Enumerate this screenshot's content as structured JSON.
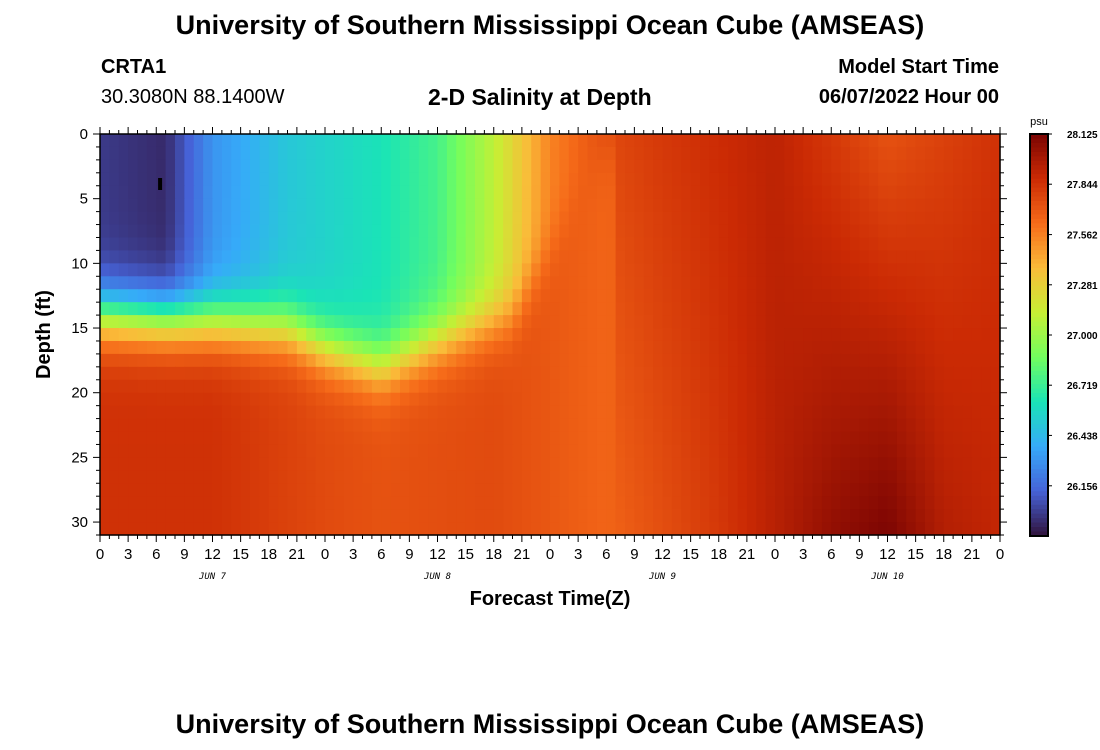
{
  "header": {
    "title": "University of Southern Mississippi Ocean Cube (AMSEAS)",
    "station_id": "CRTA1",
    "coordinates": "30.3080N  88.1400W",
    "plot_title": "2-D Salinity at Depth",
    "model_start_label": "Model Start Time",
    "model_start_value": "06/07/2022 Hour 00"
  },
  "footer": {
    "title": "University of Southern Mississippi Ocean Cube (AMSEAS)"
  },
  "chart_data": {
    "type": "heatmap",
    "title": "2-D Salinity at Depth",
    "xlabel": "Forecast Time(Z)",
    "ylabel": "Depth (ft)",
    "x_tick_labels": [
      "0",
      "3",
      "6",
      "9",
      "12",
      "15",
      "18",
      "21",
      "0",
      "3",
      "6",
      "9",
      "12",
      "15",
      "18",
      "21",
      "0",
      "3",
      "6",
      "9",
      "12",
      "15",
      "18",
      "21",
      "0",
      "3",
      "6",
      "9",
      "12",
      "15",
      "18",
      "21",
      "0"
    ],
    "x_range_hours": [
      0,
      96
    ],
    "day_labels": [
      {
        "label": "JUN 7",
        "hour": 12
      },
      {
        "label": "JUN 8",
        "hour": 36
      },
      {
        "label": "JUN 9",
        "hour": 60
      },
      {
        "label": "JUN 10",
        "hour": 84
      }
    ],
    "y_ticks": [
      0,
      5,
      10,
      15,
      20,
      25,
      30
    ],
    "y_tick_labels": [
      "0",
      "5",
      "10",
      "15",
      "20",
      "25",
      "30"
    ],
    "ylim": [
      0,
      31
    ],
    "y_inverted": true,
    "colorbar": {
      "unit": "psu",
      "min": 25.875,
      "max": 28.125,
      "labels": [
        "28.125",
        "27.844",
        "27.562",
        "27.281",
        "27.000",
        "26.719",
        "26.438",
        "26.156"
      ],
      "colors": [
        "#30123b",
        "#4662d7",
        "#36aaf9",
        "#1ae4b6",
        "#72fe5e",
        "#c7ef34",
        "#fabb39",
        "#f66b19",
        "#cb2a04",
        "#7a0403"
      ]
    },
    "surface_salinity_keypoints": [
      {
        "hour": 0,
        "value": 26.0
      },
      {
        "hour": 7,
        "value": 25.95
      },
      {
        "hour": 12,
        "value": 26.3
      },
      {
        "hour": 20,
        "value": 26.5
      },
      {
        "hour": 30,
        "value": 26.62
      },
      {
        "hour": 36,
        "value": 26.75
      },
      {
        "hour": 42,
        "value": 27.1
      },
      {
        "hour": 48,
        "value": 27.55
      },
      {
        "hour": 54,
        "value": 27.75
      },
      {
        "hour": 60,
        "value": 27.82
      },
      {
        "hour": 72,
        "value": 27.92
      },
      {
        "hour": 84,
        "value": 27.72
      },
      {
        "hour": 96,
        "value": 27.85
      }
    ],
    "bottom_salinity_keypoints": [
      {
        "hour": 0,
        "value": 27.85
      },
      {
        "hour": 12,
        "value": 27.85
      },
      {
        "hour": 24,
        "value": 27.75
      },
      {
        "hour": 30,
        "value": 27.72
      },
      {
        "hour": 42,
        "value": 27.75
      },
      {
        "hour": 54,
        "value": 27.65
      },
      {
        "hour": 66,
        "value": 27.82
      },
      {
        "hour": 78,
        "value": 28.05
      },
      {
        "hour": 84,
        "value": 28.12
      },
      {
        "hour": 90,
        "value": 27.95
      },
      {
        "hour": 96,
        "value": 27.9
      }
    ],
    "halocline_depth_keypoints": [
      {
        "hour": 0,
        "value": 14
      },
      {
        "hour": 12,
        "value": 14.5
      },
      {
        "hour": 20,
        "value": 15
      },
      {
        "hour": 24,
        "value": 16.5
      },
      {
        "hour": 30,
        "value": 18
      },
      {
        "hour": 36,
        "value": 16
      },
      {
        "hour": 44,
        "value": 14
      },
      {
        "hour": 48,
        "value": 9
      },
      {
        "hour": 52,
        "value": 3
      },
      {
        "hour": 56,
        "value": 0
      }
    ],
    "grid": false
  }
}
